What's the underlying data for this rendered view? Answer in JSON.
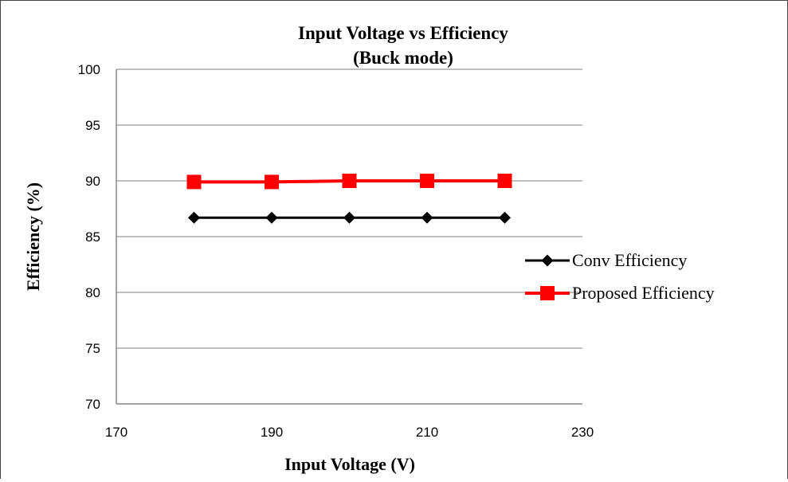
{
  "chart_data": {
    "type": "line",
    "title": "Input Voltage vs Efficiency",
    "subtitle": "(Buck mode)",
    "xlabel": "Input Voltage (V)",
    "ylabel": "Efficiency (%)",
    "xlim": [
      170,
      230
    ],
    "ylim": [
      70,
      100
    ],
    "x_ticks": [
      "170",
      "190",
      "210",
      "230"
    ],
    "y_ticks": [
      "70",
      "75",
      "80",
      "85",
      "90",
      "95",
      "100"
    ],
    "x": [
      180,
      190,
      200,
      210,
      220
    ],
    "grid": true,
    "legend_position": "right",
    "series": [
      {
        "name": "Conv Efficiency",
        "values": [
          86.7,
          86.7,
          86.7,
          86.7,
          86.7
        ],
        "color": "#000000",
        "marker": "diamond"
      },
      {
        "name": "Proposed Efficiency",
        "values": [
          89.9,
          89.9,
          90.0,
          90.0,
          90.0
        ],
        "color": "#ff0000",
        "marker": "square"
      }
    ]
  }
}
